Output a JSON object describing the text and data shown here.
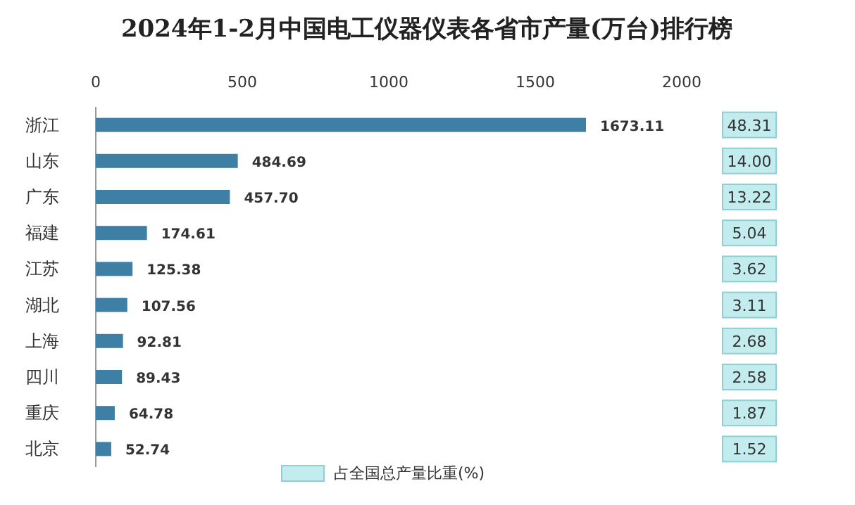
{
  "chart_data": [
    {
      "type": "bar",
      "orientation": "horizontal",
      "title": "2024年1-2月中国电工仪器仪表各省市产量(万台)排行榜",
      "categories": [
        "浙江",
        "山东",
        "广东",
        "福建",
        "江苏",
        "湖北",
        "上海",
        "四川",
        "重庆",
        "北京"
      ],
      "xlim": [
        0,
        2000
      ],
      "xticks": [
        0,
        500,
        1000,
        1500,
        2000
      ],
      "grid": false,
      "data_labels": true,
      "series": [
        {
          "color": "#3e7fa6",
          "values": [
            1673.11,
            484.69,
            457.7,
            174.61,
            125.38,
            107.56,
            92.81,
            89.43,
            64.78,
            52.74
          ],
          "value_labels": [
            "1673.11",
            "484.69",
            "457.70",
            "174.61",
            "125.38",
            "107.56",
            "92.81",
            "89.43",
            "64.78",
            "52.74"
          ]
        }
      ]
    },
    {
      "type": "other",
      "legend": "bottom",
      "data_labels": true,
      "series": [
        {
          "name": "占全国总产量比重(%)",
          "color": "#c3ecee",
          "values": [
            48.31,
            14.0,
            13.22,
            5.04,
            3.62,
            3.11,
            2.68,
            2.58,
            1.87,
            1.52
          ],
          "value_labels": [
            "48.31",
            "14.00",
            "13.22",
            "5.04",
            "3.62",
            "3.11",
            "2.68",
            "2.58",
            "1.87",
            "1.52"
          ]
        }
      ]
    }
  ]
}
